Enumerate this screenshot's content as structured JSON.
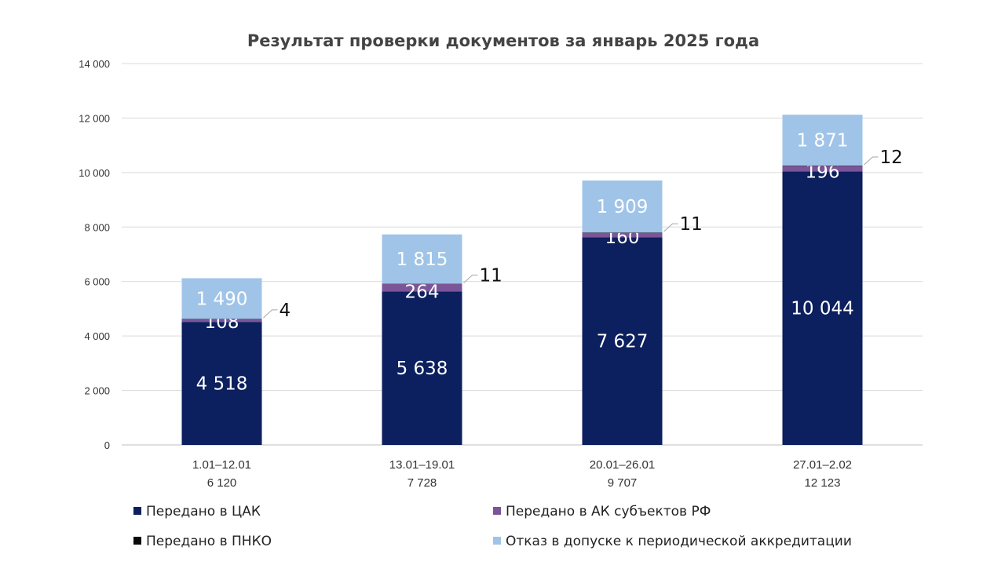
{
  "chart_data": {
    "type": "bar",
    "stacked": true,
    "title": "Результат проверки документов за январь 2025 года",
    "xlabel": "",
    "ylabel": "",
    "ylim": [
      0,
      14000
    ],
    "yticks": [
      0,
      2000,
      4000,
      6000,
      8000,
      10000,
      12000,
      14000
    ],
    "ytick_labels": [
      "0",
      "2 000",
      "4 000",
      "6 000",
      "8 000",
      "10 000",
      "12 000",
      "14 000"
    ],
    "grid": true,
    "legend_position": "bottom",
    "categories": [
      "1.01–12.01",
      "13.01–19.01",
      "20.01–26.01",
      "27.01–2.02"
    ],
    "category_totals": [
      "6 120",
      "7 728",
      "9 707",
      "12 123"
    ],
    "series": [
      {
        "name": "Передано в ЦАК",
        "color": "#0c1f5e",
        "label_color": "#ffffff",
        "values": [
          4518,
          5638,
          7627,
          10044
        ],
        "labels": [
          "4 518",
          "5 638",
          "7 627",
          "10 044"
        ]
      },
      {
        "name": "Передано в АК субъектов РФ",
        "color": "#7b5499",
        "label_color": "#ffffff",
        "values": [
          108,
          264,
          160,
          196
        ],
        "labels": [
          "108",
          "264",
          "160",
          "196"
        ]
      },
      {
        "name": "Передано в ПНКО",
        "color": "#0a0a0a",
        "label_color": "#111111",
        "callout": true,
        "values": [
          4,
          11,
          11,
          12
        ],
        "labels": [
          "4",
          "11",
          "11",
          "12"
        ]
      },
      {
        "name": "Отказ в допуске к периодической аккредитации",
        "color": "#9fc4e8",
        "label_color": "#ffffff",
        "values": [
          1490,
          1815,
          1909,
          1871
        ],
        "labels": [
          "1 490",
          "1 815",
          "1 909",
          "1 871"
        ]
      }
    ]
  }
}
